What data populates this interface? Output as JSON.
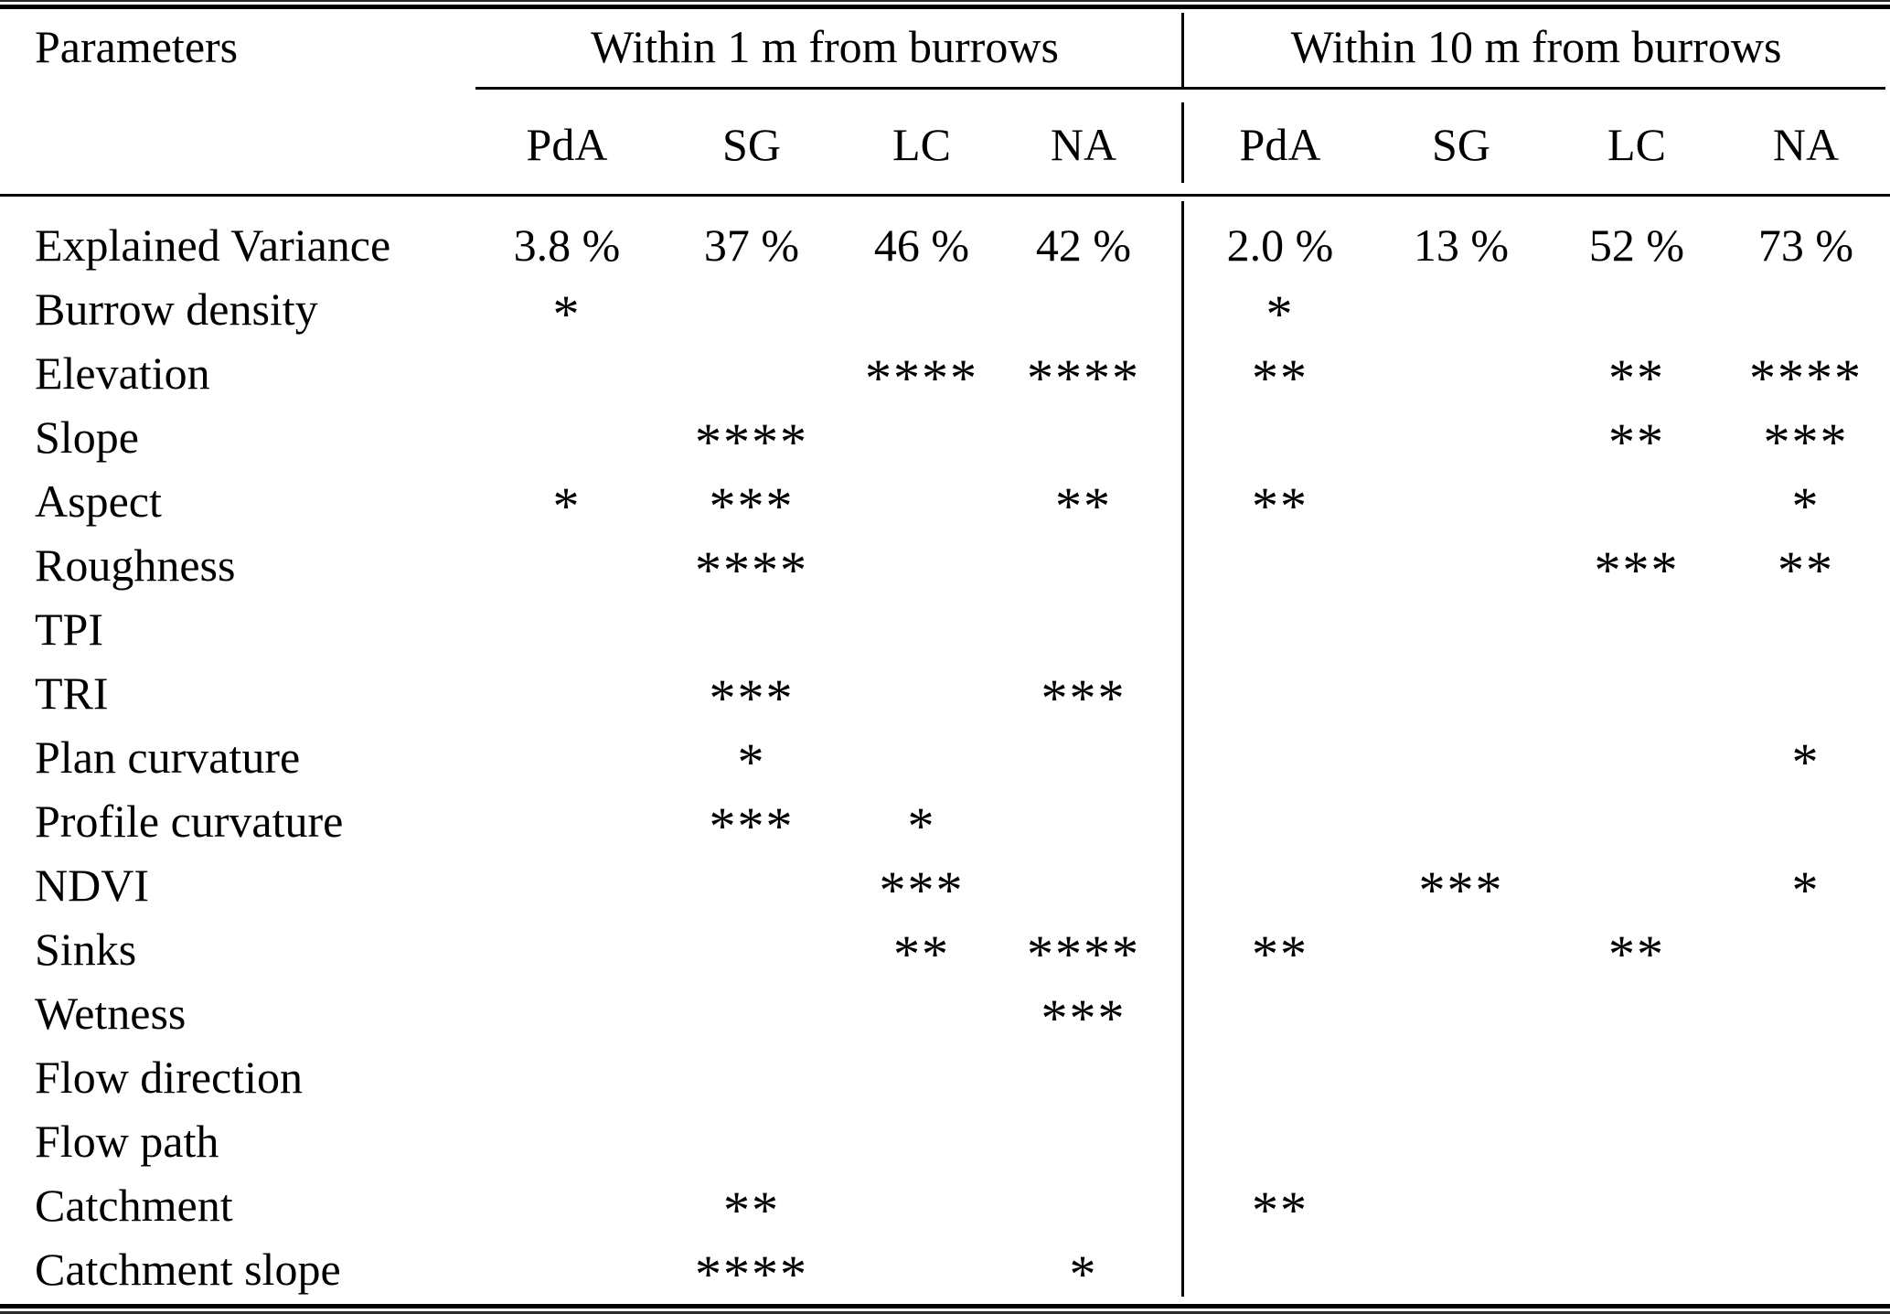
{
  "table": {
    "params_header": "Parameters",
    "col_groups": [
      {
        "label": "Within 1 m from burrows"
      },
      {
        "label": "Within 10 m from burrows"
      }
    ],
    "sub_columns": [
      "PdA",
      "SG",
      "LC",
      "NA",
      "PdA",
      "SG",
      "LC",
      "NA"
    ],
    "rows": [
      {
        "label": "Explained Variance",
        "cells": [
          "3.8 %",
          "37 %",
          "46 %",
          "42 %",
          "2.0 %",
          "13 %",
          "52 %",
          "73 %"
        ]
      },
      {
        "label": "Burrow density",
        "cells": [
          "*",
          "",
          "",
          "",
          "*",
          "",
          "",
          ""
        ]
      },
      {
        "label": "Elevation",
        "cells": [
          "",
          "",
          "****",
          "****",
          "**",
          "",
          "**",
          "****"
        ]
      },
      {
        "label": "Slope",
        "cells": [
          "",
          "****",
          "",
          "",
          "",
          "",
          "**",
          "***"
        ]
      },
      {
        "label": "Aspect",
        "cells": [
          "*",
          "***",
          "",
          "**",
          "**",
          "",
          "",
          "*"
        ]
      },
      {
        "label": "Roughness",
        "cells": [
          "",
          "****",
          "",
          "",
          "",
          "",
          "***",
          "**"
        ]
      },
      {
        "label": "TPI",
        "cells": [
          "",
          "",
          "",
          "",
          "",
          "",
          "",
          ""
        ]
      },
      {
        "label": "TRI",
        "cells": [
          "",
          "***",
          "",
          "***",
          "",
          "",
          "",
          ""
        ]
      },
      {
        "label": "Plan curvature",
        "cells": [
          "",
          "*",
          "",
          "",
          "",
          "",
          "",
          "*"
        ]
      },
      {
        "label": "Profile curvature",
        "cells": [
          "",
          "***",
          "*",
          "",
          "",
          "",
          "",
          ""
        ]
      },
      {
        "label": "NDVI",
        "cells": [
          "",
          "",
          "***",
          "",
          "",
          "***",
          "",
          "*"
        ]
      },
      {
        "label": "Sinks",
        "cells": [
          "",
          "",
          "**",
          "****",
          "**",
          "",
          "**",
          ""
        ]
      },
      {
        "label": "Wetness",
        "cells": [
          "",
          "",
          "",
          "***",
          "",
          "",
          "",
          ""
        ]
      },
      {
        "label": "Flow direction",
        "cells": [
          "",
          "",
          "",
          "",
          "",
          "",
          "",
          ""
        ]
      },
      {
        "label": "Flow path",
        "cells": [
          "",
          "",
          "",
          "",
          "",
          "",
          "",
          ""
        ]
      },
      {
        "label": "Catchment",
        "cells": [
          "",
          "**",
          "",
          "",
          "**",
          "",
          "",
          ""
        ]
      },
      {
        "label": "Catchment slope",
        "cells": [
          "",
          "****",
          "",
          "*",
          "",
          "",
          "",
          ""
        ]
      }
    ],
    "colors": {
      "text": "#000000",
      "background": "#ffffff",
      "rule": "#000000"
    }
  }
}
